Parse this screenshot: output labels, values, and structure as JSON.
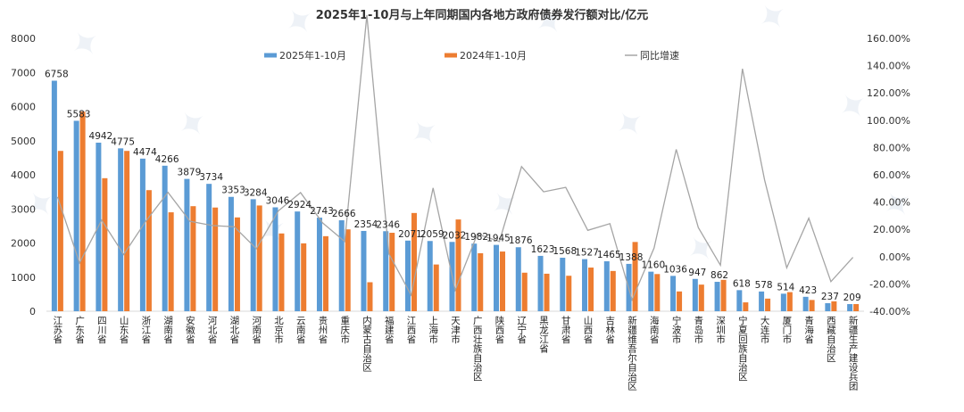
{
  "chart_data": {
    "type": "bar",
    "title": "2025年1-10月与上年同期国内各地方政府债券发行额对比/亿元",
    "categories": [
      "江苏省",
      "广东省",
      "四川省",
      "山东省",
      "浙江省",
      "湖南省",
      "安徽省",
      "河北省",
      "湖北省",
      "河南省",
      "北京市",
      "云南省",
      "贵州省",
      "重庆市",
      "内蒙古自治区",
      "福建省",
      "江西省",
      "上海市",
      "天津市",
      "广西壮族自治区",
      "陕西省",
      "辽宁省",
      "黑龙江省",
      "甘肃省",
      "山西省",
      "吉林省",
      "新疆维吾尔自治区",
      "海南省",
      "宁波市",
      "青岛市",
      "深圳市",
      "宁夏回族自治区",
      "大连市",
      "厦门市",
      "青海省",
      "西藏自治区",
      "新疆生产建设兵团"
    ],
    "series": [
      {
        "name": "2025年1-10月",
        "color": "#5b9bd5",
        "values": [
          6758,
          5583,
          4942,
          4775,
          4474,
          4266,
          3879,
          3734,
          3353,
          3284,
          3046,
          2924,
          2743,
          2666,
          2354,
          2346,
          2071,
          2059,
          2032,
          1982,
          1945,
          1876,
          1623,
          1568,
          1527,
          1465,
          1388,
          1160,
          1036,
          947,
          862,
          618,
          578,
          514,
          423,
          237,
          209
        ]
      },
      {
        "name": "2024年1-10月",
        "color": "#ed7d31",
        "values": [
          4700,
          5850,
          3900,
          4700,
          3550,
          2900,
          3080,
          3040,
          2750,
          3100,
          2280,
          1990,
          2200,
          2400,
          850,
          2300,
          2880,
          1370,
          2690,
          1700,
          1750,
          1130,
          1100,
          1040,
          1280,
          1180,
          2030,
          1090,
          580,
          780,
          920,
          260,
          370,
          560,
          330,
          290,
          210
        ]
      },
      {
        "name": "同比增速",
        "color": "#a5a5a5",
        "values": [
          43.8,
          -4.6,
          26.7,
          1.6,
          26.0,
          47.1,
          25.9,
          22.8,
          21.9,
          5.9,
          33.6,
          46.9,
          24.7,
          11.1,
          176.9,
          2.0,
          -28.1,
          50.3,
          -24.5,
          16.6,
          11.1,
          66.0,
          47.5,
          50.8,
          19.3,
          24.2,
          -31.6,
          6.4,
          78.6,
          21.4,
          -6.3,
          137.7,
          56.2,
          -8.2,
          28.2,
          -18.3,
          -0.5
        ]
      }
    ],
    "y_left": {
      "min": 0,
      "max": 8000,
      "ticks": [
        0,
        1000,
        2000,
        3000,
        4000,
        5000,
        6000,
        7000,
        8000
      ]
    },
    "y_right": {
      "min": -40,
      "max": 160,
      "ticks": [
        "-40.00%",
        "-20.00%",
        "0.00%",
        "20.00%",
        "40.00%",
        "60.00%",
        "80.00%",
        "100.00%",
        "120.00%",
        "140.00%",
        "160.00%"
      ]
    },
    "legend_position": "top",
    "grid": false
  }
}
